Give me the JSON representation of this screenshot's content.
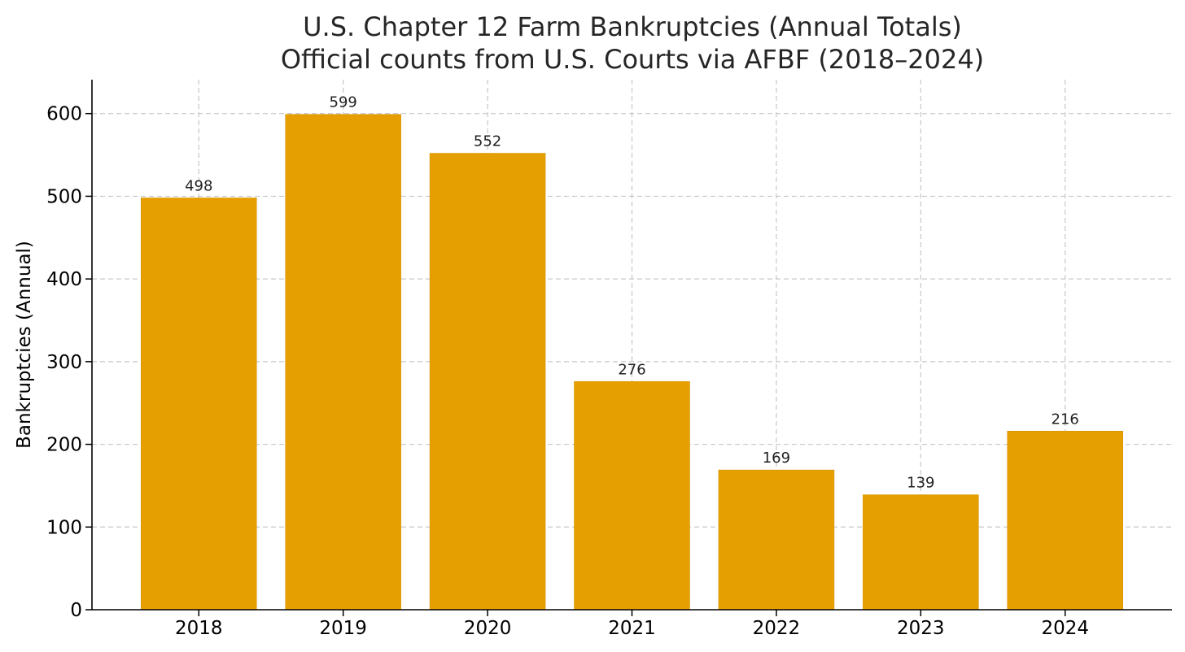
{
  "chart_data": {
    "type": "bar",
    "title": "U.S. Chapter 12 Farm Bankruptcies (Annual Totals)",
    "subtitle": "Official counts from U.S. Courts via AFBF (2018–2024)",
    "xlabel": "",
    "ylabel": "Bankruptcies (Annual)",
    "categories": [
      "2018",
      "2019",
      "2020",
      "2021",
      "2022",
      "2023",
      "2024"
    ],
    "values": [
      498,
      599,
      552,
      276,
      169,
      139,
      216
    ],
    "ylim": [
      0,
      641
    ],
    "yticks": [
      0,
      100,
      200,
      300,
      400,
      500,
      600
    ],
    "grid": true,
    "bar_color": "#E69F00",
    "data_labels": true
  }
}
